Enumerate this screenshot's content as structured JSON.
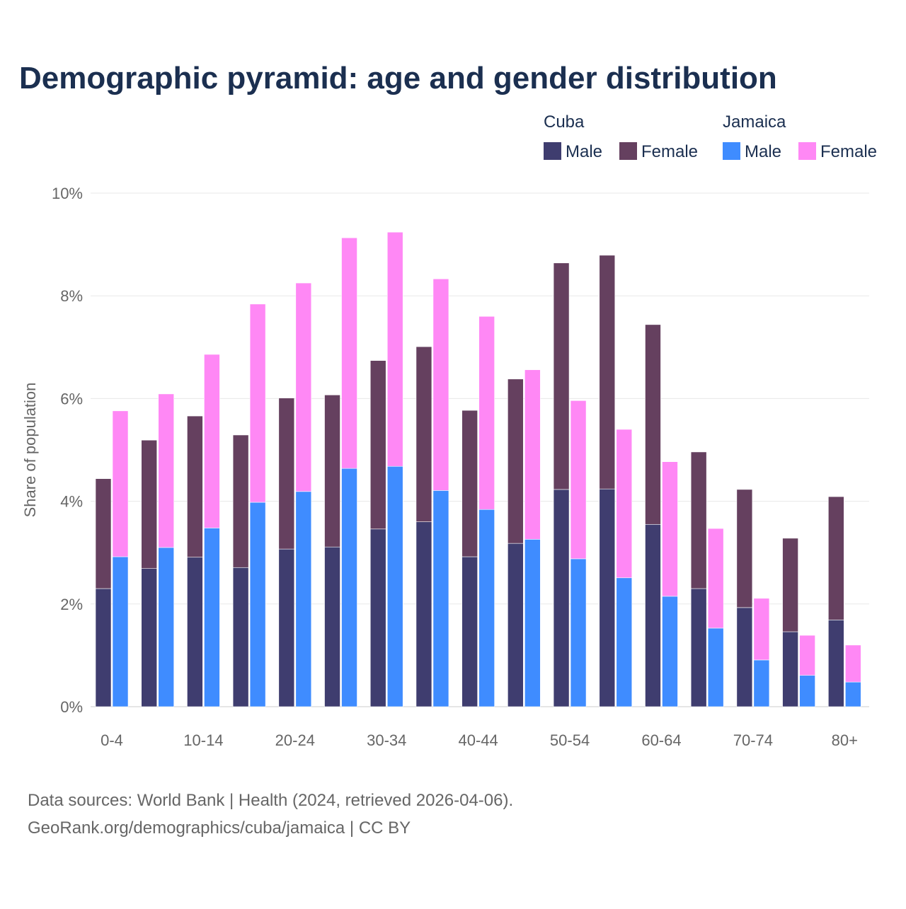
{
  "chart_data": {
    "type": "bar",
    "stacked": true,
    "title": "Demographic pyramid: age and gender distribution",
    "ylabel": "Share of population",
    "xlabel": "",
    "ylim": [
      0,
      10
    ],
    "yticks": [
      0,
      2,
      4,
      6,
      8,
      10
    ],
    "ytick_labels": [
      "0%",
      "2%",
      "4%",
      "6%",
      "8%",
      "10%"
    ],
    "categories": [
      "0-4",
      "5-9",
      "10-14",
      "15-19",
      "20-24",
      "25-29",
      "30-34",
      "35-39",
      "40-44",
      "45-49",
      "50-54",
      "55-59",
      "60-64",
      "65-69",
      "70-74",
      "75-79",
      "80+"
    ],
    "xtick_labels_shown": [
      "0-4",
      "10-14",
      "20-24",
      "30-34",
      "40-44",
      "50-54",
      "60-64",
      "70-74",
      "80+"
    ],
    "grid": true,
    "legend_position": "top-right",
    "countries": [
      {
        "name": "Cuba",
        "series": [
          {
            "name": "Male",
            "color": "#3f3d6f",
            "values": [
              2.3,
              2.69,
              2.91,
              2.71,
              3.07,
              3.11,
              3.46,
              3.6,
              2.92,
              3.18,
              4.23,
              4.24,
              3.55,
              2.3,
              1.93,
              1.46,
              1.69
            ]
          },
          {
            "name": "Female",
            "color": "#65405f",
            "values": [
              2.14,
              2.5,
              2.75,
              2.58,
              2.94,
              2.96,
              3.28,
              3.41,
              2.85,
              3.2,
              4.41,
              4.55,
              3.89,
              2.66,
              2.3,
              1.82,
              2.4
            ]
          }
        ]
      },
      {
        "name": "Jamaica",
        "series": [
          {
            "name": "Male",
            "color": "#3f8cff",
            "values": [
              2.92,
              3.1,
              3.48,
              3.98,
              4.19,
              4.64,
              4.68,
              4.21,
              3.84,
              3.26,
              2.88,
              2.51,
              2.15,
              1.53,
              0.91,
              0.61,
              0.48
            ]
          },
          {
            "name": "Female",
            "color": "#ff88f5",
            "values": [
              2.84,
              2.99,
              3.38,
              3.86,
              4.06,
              4.49,
              4.56,
              4.12,
              3.76,
              3.3,
              3.08,
              2.89,
              2.62,
              1.94,
              1.2,
              0.78,
              0.72
            ]
          }
        ]
      }
    ],
    "footer": [
      "Data sources: World Bank | Health (2024, retrieved 2026-04-06).",
      "GeoRank.org/demographics/cuba/jamaica | CC BY"
    ]
  }
}
